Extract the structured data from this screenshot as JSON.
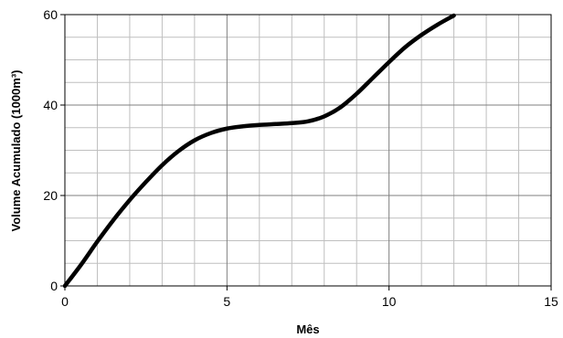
{
  "chart_data": {
    "type": "line",
    "title": "",
    "xlabel": "Mês",
    "ylabel": "Volume Acumulado (1000m³)",
    "xlim": [
      0,
      15
    ],
    "ylim": [
      0,
      60
    ],
    "x_major_ticks": [
      0,
      5,
      10,
      15
    ],
    "y_major_ticks": [
      0,
      20,
      40,
      60
    ],
    "x_minor_step": 1,
    "y_minor_step": 5,
    "grid": true,
    "legend": "none",
    "series": [
      {
        "color": "#000000",
        "x": [
          0,
          0.5,
          1,
          1.5,
          2,
          2.5,
          3,
          3.5,
          4,
          4.5,
          5,
          5.5,
          6,
          6.5,
          7,
          7.5,
          8,
          8.5,
          9,
          9.5,
          10,
          10.5,
          11,
          11.5,
          12
        ],
        "y": [
          0,
          4.7,
          9.8,
          14.6,
          19.0,
          23.0,
          26.7,
          29.8,
          32.2,
          33.8,
          34.8,
          35.3,
          35.6,
          35.8,
          36.0,
          36.4,
          37.5,
          39.5,
          42.5,
          46.0,
          49.5,
          52.8,
          55.5,
          57.8,
          59.8
        ]
      }
    ]
  }
}
